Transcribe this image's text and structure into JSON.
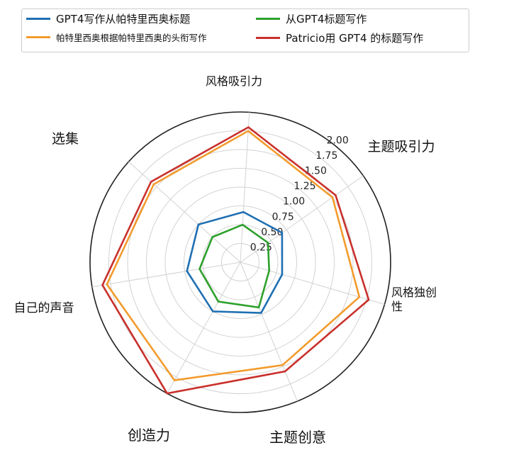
{
  "chart_data": {
    "type": "radar",
    "axes": [
      "风格吸引力",
      "主题吸引力",
      "风格独创性",
      "主题创意",
      "创造力",
      "自己的声音",
      "选集"
    ],
    "rlim": [
      0,
      2.0
    ],
    "rticks": [
      "0.25",
      "0.50",
      "0.75",
      "1.00",
      "1.25",
      "1.50",
      "1.75",
      "2.00"
    ],
    "grid": true,
    "legend_position": "top",
    "series": [
      {
        "name": "GPT4写作从帕特里西奥标题",
        "color": "#1f6fb2",
        "values": [
          0.67,
          0.68,
          0.58,
          0.73,
          0.75,
          0.72,
          0.75
        ]
      },
      {
        "name": "帕特里西奥根据帕特里西奥的头衔写作",
        "color": "#f39b2d",
        "values": [
          1.75,
          1.5,
          1.65,
          1.48,
          1.8,
          1.8,
          1.55
        ]
      },
      {
        "name": "从GPT4标题写作",
        "color": "#2ea02c",
        "values": [
          0.5,
          0.45,
          0.4,
          0.65,
          0.6,
          0.55,
          0.5
        ]
      },
      {
        "name": "Patricio用 GPT4 的标题写作",
        "color": "#c9302c",
        "values": [
          1.8,
          1.55,
          1.78,
          1.57,
          2.0,
          1.86,
          1.6
        ]
      }
    ]
  }
}
